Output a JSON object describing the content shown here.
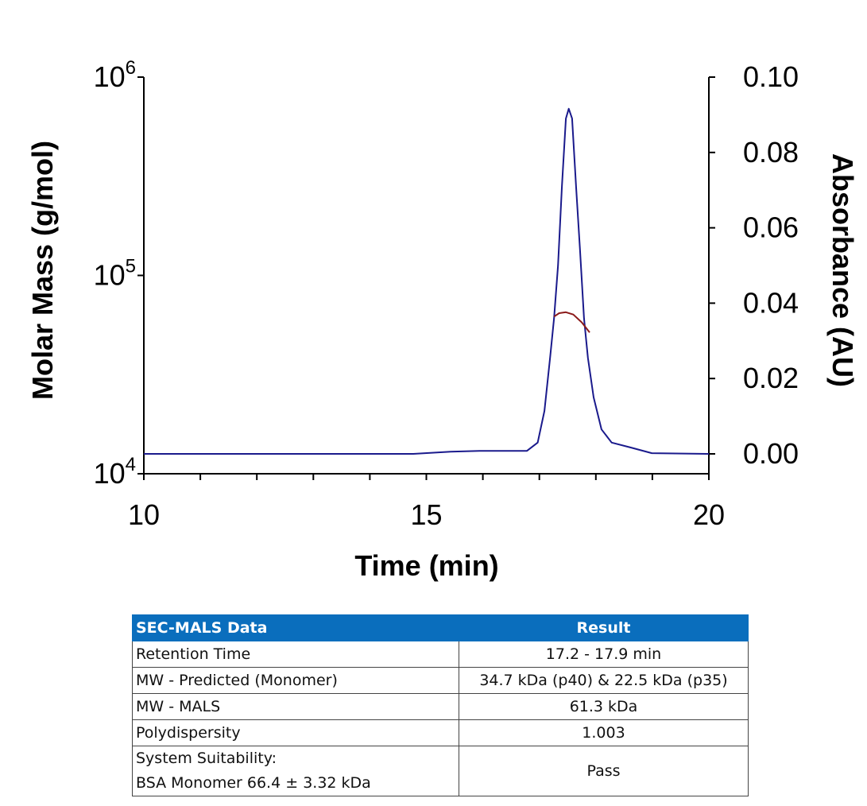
{
  "chart_data": {
    "type": "line",
    "xlabel": "Time (min)",
    "ylabel_left": "Molar Mass (g/mol)",
    "ylabel_right": "Absorbance (AU)",
    "xlim": [
      10,
      20
    ],
    "x_ticks": [
      "10",
      "15",
      "20"
    ],
    "ylim_left": [
      10000,
      1000000
    ],
    "left_scale": "log",
    "left_ticks": [
      {
        "base": "10",
        "exp": "4"
      },
      {
        "base": "10",
        "exp": "5"
      },
      {
        "base": "10",
        "exp": "6"
      }
    ],
    "ylim_right": [
      0,
      0.1
    ],
    "right_ticks": [
      "0.00",
      "0.02",
      "0.04",
      "0.06",
      "0.08",
      "0.10"
    ],
    "grid": false,
    "series": [
      {
        "axis": "right",
        "color": "#1a1a8c",
        "x": [
          10,
          14.77,
          15.43,
          15.94,
          16.3,
          16.78,
          16.97,
          17.09,
          17.19,
          17.26,
          17.33,
          17.4,
          17.47,
          17.52,
          17.58,
          17.65,
          17.72,
          17.79,
          17.86,
          17.96,
          18.1,
          18.28,
          18.61,
          18.99,
          20
        ],
        "y": [
          0,
          0,
          0.0006,
          0.0008,
          0.0008,
          0.0008,
          0.003,
          0.0114,
          0.0255,
          0.036,
          0.05,
          0.071,
          0.089,
          0.0916,
          0.089,
          0.071,
          0.054,
          0.036,
          0.0255,
          0.015,
          0.0065,
          0.003,
          0.0017,
          0.0002,
          0
        ]
      },
      {
        "axis": "left",
        "color": "#8b1a1a",
        "x": [
          17.26,
          17.35,
          17.47,
          17.6,
          17.75,
          17.89
        ],
        "y": [
          62000,
          64500,
          65200,
          63500,
          58000,
          51600
        ]
      }
    ]
  },
  "table": {
    "headers": [
      "SEC-MALS Data",
      "Result"
    ],
    "rows": [
      [
        "Retention Time",
        "17.2 - 17.9 min"
      ],
      [
        "MW - Predicted (Monomer)",
        "34.7 kDa (p40) & 22.5 kDa (p35)"
      ],
      [
        "MW - MALS",
        "61.3 kDa"
      ],
      [
        "Polydispersity",
        "1.003"
      ]
    ],
    "last_row": {
      "label_line1": "System Suitability:",
      "label_line2": "BSA Monomer 66.4 ± 3.32 kDa",
      "value": "Pass"
    }
  }
}
